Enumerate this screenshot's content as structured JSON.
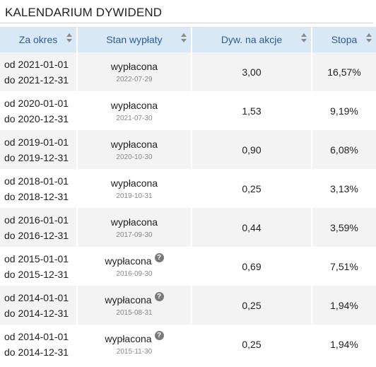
{
  "title": "KALENDARIUM DYWIDEND",
  "columns": {
    "period": "Za okres",
    "status": "Stan wypłaty",
    "dividend": "Dyw. na akcje",
    "rate": "Stopa"
  },
  "rows": [
    {
      "from": "od 2021-01-01",
      "to": "do 2021-12-31",
      "status": "wypłacona",
      "date": "2022-07-29",
      "dividend": "3,00",
      "rate": "16,57%",
      "help": false
    },
    {
      "from": "od 2020-01-01",
      "to": "do 2020-12-31",
      "status": "wypłacona",
      "date": "2021-07-30",
      "dividend": "1,53",
      "rate": "9,19%",
      "help": false
    },
    {
      "from": "od 2019-01-01",
      "to": "do 2019-12-31",
      "status": "wypłacona",
      "date": "2020-10-30",
      "dividend": "0,90",
      "rate": "6,08%",
      "help": false
    },
    {
      "from": "od 2018-01-01",
      "to": "do 2018-12-31",
      "status": "wypłacona",
      "date": "2019-10-31",
      "dividend": "0,25",
      "rate": "3,13%",
      "help": false
    },
    {
      "from": "od 2016-01-01",
      "to": "do 2016-12-31",
      "status": "wypłacona",
      "date": "2017-09-30",
      "dividend": "0,44",
      "rate": "3,59%",
      "help": false
    },
    {
      "from": "od 2015-01-01",
      "to": "do 2015-12-31",
      "status": "wypłacona",
      "date": "2016-09-30",
      "dividend": "0,69",
      "rate": "7,51%",
      "help": true
    },
    {
      "from": "od 2014-01-01",
      "to": "do 2014-12-31",
      "status": "wypłacona",
      "date": "2015-08-31",
      "dividend": "0,25",
      "rate": "1,94%",
      "help": true
    },
    {
      "from": "od 2014-01-01",
      "to": "do 2014-12-31",
      "status": "wypłacona",
      "date": "2015-11-30",
      "dividend": "0,25",
      "rate": "1,94%",
      "help": true
    }
  ],
  "help_glyph": "?",
  "colors": {
    "header_bg": "#d9e8f5",
    "header_text": "#2a5f96",
    "row_alt": "#f3f3f3"
  }
}
